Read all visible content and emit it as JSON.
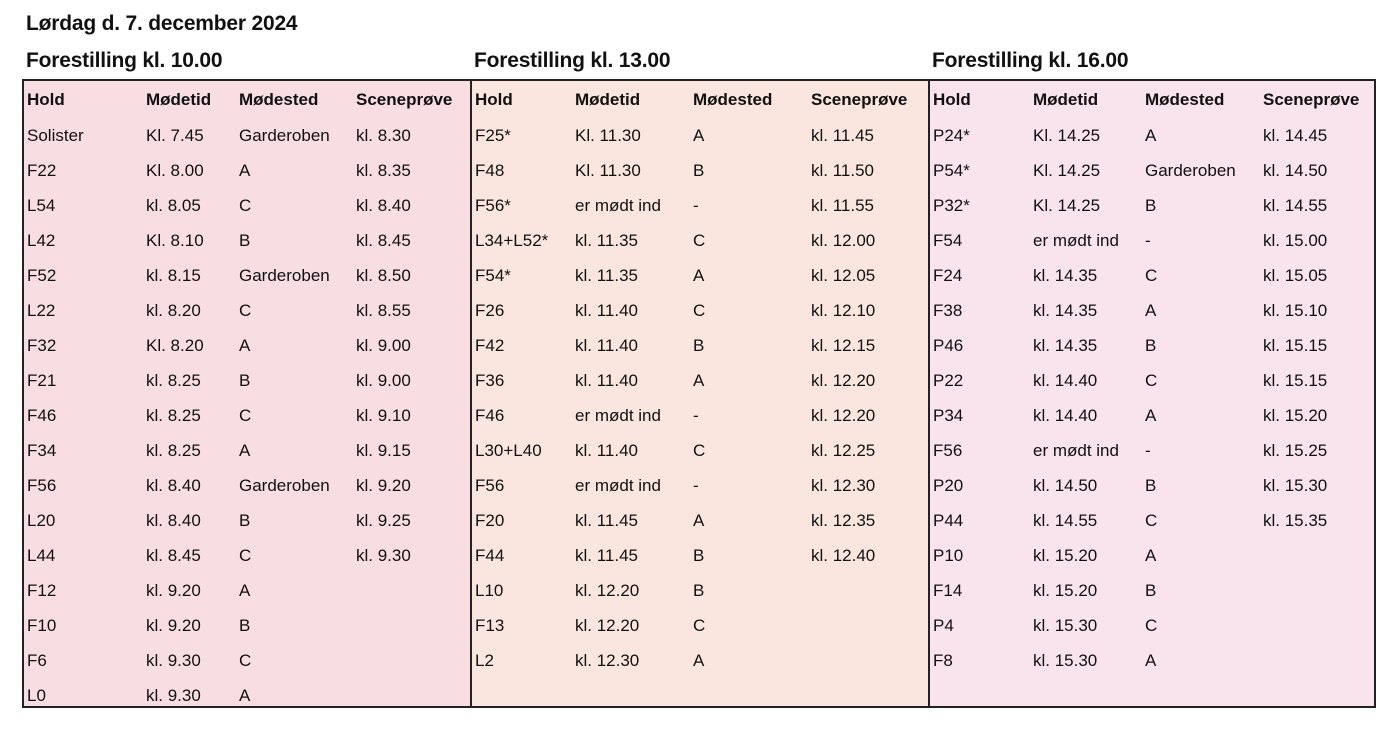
{
  "doc_title": "Lørdag d. 7. december 2024",
  "columns": [
    "Hold",
    "Mødetid",
    "Mødested",
    "Sceneprøve"
  ],
  "shows": [
    {
      "title": "Forestilling kl. 10.00",
      "rows": [
        [
          "Solister",
          "Kl. 7.45",
          "Garderoben",
          "kl. 8.30"
        ],
        [
          "F22",
          "Kl. 8.00",
          "A",
          "kl. 8.35"
        ],
        [
          "L54",
          "kl. 8.05",
          "C",
          "kl. 8.40"
        ],
        [
          "L42",
          "Kl. 8.10",
          "B",
          "kl. 8.45"
        ],
        [
          "F52",
          "kl. 8.15",
          "Garderoben",
          "kl. 8.50"
        ],
        [
          "L22",
          "kl. 8.20",
          "C",
          "kl. 8.55"
        ],
        [
          "F32",
          "Kl. 8.20",
          "A",
          "kl. 9.00"
        ],
        [
          "F21",
          "kl. 8.25",
          "B",
          "kl. 9.00"
        ],
        [
          "F46",
          "kl. 8.25",
          "C",
          "kl. 9.10"
        ],
        [
          "F34",
          "kl. 8.25",
          "A",
          "kl. 9.15"
        ],
        [
          "F56",
          "kl. 8.40",
          "Garderoben",
          "kl. 9.20"
        ],
        [
          "L20",
          "kl. 8.40",
          "B",
          "kl. 9.25"
        ],
        [
          "L44",
          "kl. 8.45",
          "C",
          "kl. 9.30"
        ],
        [
          "F12",
          "kl. 9.20",
          "A",
          ""
        ],
        [
          "F10",
          "kl. 9.20",
          "B",
          ""
        ],
        [
          "F6",
          "kl. 9.30",
          "C",
          ""
        ],
        [
          "L0",
          "kl. 9.30",
          "A",
          ""
        ]
      ]
    },
    {
      "title": "Forestilling kl. 13.00",
      "rows": [
        [
          "F25*",
          "Kl. 11.30",
          "A",
          "kl. 11.45"
        ],
        [
          "F48",
          "Kl. 11.30",
          "B",
          "kl. 11.50"
        ],
        [
          "F56*",
          "er mødt ind",
          "-",
          "kl. 11.55"
        ],
        [
          "L34+L52*",
          "kl. 11.35",
          "C",
          "kl. 12.00"
        ],
        [
          "F54*",
          "kl. 11.35",
          "A",
          "kl. 12.05"
        ],
        [
          "F26",
          "kl. 11.40",
          "C",
          "kl. 12.10"
        ],
        [
          "F42",
          "kl. 11.40",
          "B",
          "kl. 12.15"
        ],
        [
          "F36",
          "kl. 11.40",
          "A",
          "kl. 12.20"
        ],
        [
          "F46",
          "er mødt ind",
          "-",
          "kl. 12.20"
        ],
        [
          "L30+L40",
          "kl. 11.40",
          "C",
          "kl. 12.25"
        ],
        [
          "F56",
          "er mødt ind",
          "-",
          "kl. 12.30"
        ],
        [
          "F20",
          "kl. 11.45",
          "A",
          "kl. 12.35"
        ],
        [
          "F44",
          "kl. 11.45",
          "B",
          "kl. 12.40"
        ],
        [
          "L10",
          "kl. 12.20",
          "B",
          ""
        ],
        [
          "F13",
          "kl. 12.20",
          "C",
          ""
        ],
        [
          "L2",
          "kl. 12.30",
          "A",
          ""
        ]
      ]
    },
    {
      "title": "Forestilling kl. 16.00",
      "rows": [
        [
          "P24*",
          "Kl. 14.25",
          "A",
          "kl. 14.45"
        ],
        [
          "P54*",
          "Kl. 14.25",
          "Garderoben",
          "kl. 14.50"
        ],
        [
          "P32*",
          "Kl. 14.25",
          "B",
          "kl. 14.55"
        ],
        [
          "F54",
          "er mødt ind",
          "-",
          "kl. 15.00"
        ],
        [
          "F24",
          "kl. 14.35",
          "C",
          "kl. 15.05"
        ],
        [
          "F38",
          "kl. 14.35",
          "A",
          "kl. 15.10"
        ],
        [
          "P46",
          "kl. 14.35",
          "B",
          "kl. 15.15"
        ],
        [
          "P22",
          "kl. 14.40",
          "C",
          "kl. 15.15"
        ],
        [
          "P34",
          "kl. 14.40",
          "A",
          "kl. 15.20"
        ],
        [
          "F56",
          "er mødt ind",
          "-",
          "kl. 15.25"
        ],
        [
          "P20",
          "kl. 14.50",
          "B",
          "kl. 15.30"
        ],
        [
          "P44",
          "kl. 14.55",
          "C",
          "kl. 15.35"
        ],
        [
          "P10",
          "kl. 15.20",
          "A",
          ""
        ],
        [
          "F14",
          "kl. 15.20",
          "B",
          ""
        ],
        [
          "P4",
          "kl. 15.30",
          "C",
          ""
        ],
        [
          "F8",
          "kl. 15.30",
          "A",
          ""
        ]
      ]
    }
  ]
}
